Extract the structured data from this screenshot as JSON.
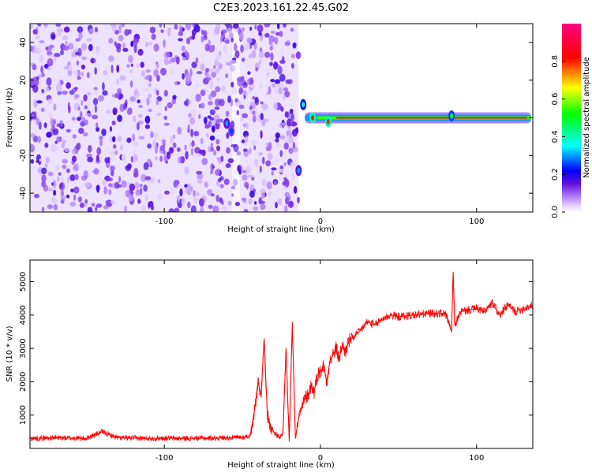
{
  "figure": {
    "title": "C2E3.2023.161.22.45.G02"
  },
  "colorbar": {
    "label": "Normalized spectral amplitude",
    "ticks": [
      "0.0",
      "0.2",
      "0.4",
      "0.6",
      "0.8"
    ],
    "tick_values": [
      0.0,
      0.2,
      0.4,
      0.6,
      0.8
    ],
    "range": [
      0,
      1
    ],
    "colors": [
      "#ffffff",
      "#e8d8ff",
      "#b080ff",
      "#6010d8",
      "#0000ff",
      "#00ffff",
      "#00ff00",
      "#ffff00",
      "#ff0000",
      "#ff0080"
    ]
  },
  "chart_data": [
    {
      "type": "heatmap",
      "xlabel": "Height of straight line (km)",
      "ylabel": "Frequency (Hz)",
      "xlim": [
        -186,
        136
      ],
      "ylim": [
        -50,
        50
      ],
      "xticks": [
        -100,
        0,
        100
      ],
      "xtick_labels": [
        "-100",
        "0",
        "100"
      ],
      "yticks": [
        -40,
        -20,
        0,
        20,
        40
      ],
      "ytick_labels": [
        "-40",
        "-20",
        "0",
        "20",
        "40"
      ],
      "grid": false,
      "noise_region_x": [
        -186,
        -14
      ],
      "signal_line": {
        "x": [
          -10,
          135
        ],
        "y": 0,
        "amplitude": 0.9
      },
      "features": [
        {
          "x": -60,
          "y": -3,
          "amplitude": 0.3
        },
        {
          "x": -57,
          "y": -7,
          "amplitude": 0.25
        },
        {
          "x": -14,
          "y": -28,
          "amplitude": 0.3
        },
        {
          "x": -11,
          "y": 7,
          "amplitude": 0.4
        },
        {
          "x": -5,
          "y": 0,
          "amplitude": 0.8
        },
        {
          "x": 5,
          "y": -2,
          "amplitude": 0.8
        },
        {
          "x": 84,
          "y": 1,
          "amplitude": 0.5
        }
      ]
    },
    {
      "type": "line",
      "xlabel": "Height of straight line (km)",
      "ylabel": "SNR (10 * v/v)",
      "xlim": [
        -186,
        136
      ],
      "ylim": [
        0,
        5650
      ],
      "xticks": [
        -100,
        0,
        100
      ],
      "xtick_labels": [
        "-100",
        "0",
        "100"
      ],
      "yticks": [
        1000,
        2000,
        3000,
        4000,
        5000
      ],
      "ytick_labels": [
        "1000",
        "2000",
        "3000",
        "4000",
        "5000"
      ],
      "grid": false,
      "series": [
        {
          "color": "#ff0000",
          "x": [
            -186,
            -170,
            -150,
            -140,
            -130,
            -110,
            -100,
            -90,
            -70,
            -50,
            -45,
            -42,
            -40,
            -38,
            -36,
            -34,
            -32,
            -30,
            -28,
            -26,
            -24,
            -22,
            -20,
            -18,
            -16,
            -14,
            -12,
            -10,
            -8,
            -6,
            -4,
            -2,
            0,
            2,
            4,
            6,
            8,
            10,
            12,
            14,
            16,
            18,
            20,
            25,
            30,
            35,
            40,
            45,
            50,
            60,
            70,
            80,
            84,
            85,
            86,
            90,
            100,
            105,
            110,
            115,
            120,
            125,
            130,
            136
          ],
          "y": [
            300,
            320,
            300,
            500,
            320,
            300,
            310,
            300,
            310,
            330,
            380,
            1200,
            2000,
            1600,
            3300,
            1000,
            700,
            500,
            400,
            300,
            500,
            3000,
            200,
            3800,
            300,
            900,
            1200,
            1500,
            1600,
            1900,
            1700,
            2200,
            2300,
            2500,
            2000,
            2600,
            2800,
            3000,
            2700,
            3100,
            2900,
            3200,
            3300,
            3500,
            3800,
            3700,
            3900,
            4000,
            3950,
            4000,
            4050,
            4050,
            3500,
            5300,
            3700,
            4100,
            4200,
            4100,
            4350,
            4000,
            4300,
            4100,
            4200,
            4300
          ]
        }
      ]
    }
  ]
}
